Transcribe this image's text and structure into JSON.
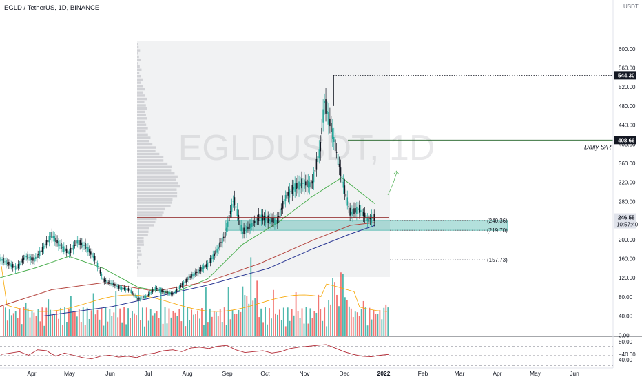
{
  "header": {
    "symbol_line": "EGLD / TetherUS, 1D, BINANCE",
    "unit": "USDT"
  },
  "watermark": "EGLDUSDT, 1D",
  "colors": {
    "up": "#26a69a",
    "down": "#131722",
    "vol_up": "#26a69a",
    "vol_down": "#ef5350",
    "zone": "#26a69a",
    "rsi": "#b22833",
    "ma_short": "#4caf50",
    "ma_mid": "#b5453f",
    "ma_long": "#283593"
  },
  "chart_data": [
    {
      "type": "line",
      "title": "EGLD / TetherUS, 1D, BINANCE",
      "x_ticks": [
        "Apr",
        "May",
        "Jun",
        "Jul",
        "Aug",
        "Sep",
        "Oct",
        "Nov",
        "Dec",
        "2022",
        "Feb",
        "Mar",
        "Apr",
        "May",
        "Jun"
      ],
      "y_ticks": [
        600,
        560,
        520,
        480,
        440,
        400,
        360,
        320,
        280,
        240,
        200,
        160,
        120,
        80,
        40,
        0,
        -40
      ],
      "y_tick_labels": [
        "600.00",
        "560.00",
        "520.00",
        "480.00",
        "440.00",
        "400.00",
        "360.00",
        "320.00",
        "280.00",
        "240.00",
        "200.00",
        "160.00",
        "120.00",
        "80.00",
        "40.00",
        "0.00",
        "−40.00"
      ],
      "ylim": [
        -60,
        610
      ],
      "price_labels": [
        {
          "value": 544.3,
          "text": "544.30"
        },
        {
          "value": 408.66,
          "text": "408.66"
        },
        {
          "value": 246.55,
          "text": "246.55",
          "sub": "10:57:40"
        }
      ],
      "annotations": {
        "daily_sr": "Daily S/R",
        "levels": [
          "(240.36)",
          "(219.70)",
          "(157.73)"
        ]
      },
      "series": [
        {
          "values": [
            {
              "x": "Mar 06",
              "y": 161
            },
            {
              "x": "Mar 13",
              "y": 150
            },
            {
              "x": "Mar 20",
              "y": 140
            },
            {
              "x": "Mar 27",
              "y": 165
            },
            {
              "x": "Apr 03",
              "y": 158
            },
            {
              "x": "Apr 10",
              "y": 180
            },
            {
              "x": "Apr 17",
              "y": 210
            },
            {
              "x": "Apr 24",
              "y": 188
            },
            {
              "x": "May 01",
              "y": 172
            },
            {
              "x": "May 08",
              "y": 196
            },
            {
              "x": "May 15",
              "y": 185
            },
            {
              "x": "May 22",
              "y": 160
            },
            {
              "x": "May 29",
              "y": 115
            },
            {
              "x": "Jun 05",
              "y": 108
            },
            {
              "x": "Jun 12",
              "y": 98
            },
            {
              "x": "Jun 19",
              "y": 95
            },
            {
              "x": "Jun 26",
              "y": 75
            },
            {
              "x": "Jul 03",
              "y": 82
            },
            {
              "x": "Jul 10",
              "y": 98
            },
            {
              "x": "Jul 17",
              "y": 90
            },
            {
              "x": "Jul 24",
              "y": 86
            },
            {
              "x": "Jul 31",
              "y": 105
            },
            {
              "x": "Aug 07",
              "y": 122
            },
            {
              "x": "Aug 14",
              "y": 135
            },
            {
              "x": "Aug 21",
              "y": 148
            },
            {
              "x": "Aug 28",
              "y": 175
            },
            {
              "x": "Sep 04",
              "y": 210
            },
            {
              "x": "Sep 11",
              "y": 285
            },
            {
              "x": "Sep 18",
              "y": 215
            },
            {
              "x": "Sep 25",
              "y": 230
            },
            {
              "x": "Oct 02",
              "y": 248
            },
            {
              "x": "Oct 09",
              "y": 242
            },
            {
              "x": "Oct 16",
              "y": 238
            },
            {
              "x": "Oct 23",
              "y": 290
            },
            {
              "x": "Oct 30",
              "y": 310
            },
            {
              "x": "Nov 06",
              "y": 318
            },
            {
              "x": "Nov 13",
              "y": 315
            },
            {
              "x": "Nov 20",
              "y": 395
            },
            {
              "x": "Nov 23",
              "y": 490
            },
            {
              "x": "Nov 30",
              "y": 420
            },
            {
              "x": "Dec 07",
              "y": 330
            },
            {
              "x": "Dec 14",
              "y": 255
            },
            {
              "x": "Dec 21",
              "y": 265
            },
            {
              "x": "Dec 28",
              "y": 242
            },
            {
              "x": "Jan 03",
              "y": 247
            }
          ]
        },
        {
          "values": [
            {
              "x": "Mar 06",
              "y": 120
            },
            {
              "x": "Apr 03",
              "y": 140
            },
            {
              "x": "May 01",
              "y": 165
            },
            {
              "x": "May 29",
              "y": 140
            },
            {
              "x": "Jun 26",
              "y": 100
            },
            {
              "x": "Jul 24",
              "y": 88
            },
            {
              "x": "Aug 21",
              "y": 118
            },
            {
              "x": "Sep 18",
              "y": 190
            },
            {
              "x": "Oct 16",
              "y": 235
            },
            {
              "x": "Nov 13",
              "y": 290
            },
            {
              "x": "Dec 07",
              "y": 330
            },
            {
              "x": "Jan 03",
              "y": 275
            }
          ]
        },
        {
          "values": [
            {
              "x": "Mar 06",
              "y": 60
            },
            {
              "x": "Apr 17",
              "y": 95
            },
            {
              "x": "May 29",
              "y": 110
            },
            {
              "x": "Jul 10",
              "y": 92
            },
            {
              "x": "Aug 21",
              "y": 112
            },
            {
              "x": "Oct 02",
              "y": 150
            },
            {
              "x": "Nov 13",
              "y": 198
            },
            {
              "x": "Dec 14",
              "y": 230
            },
            {
              "x": "Jan 03",
              "y": 236
            }
          ]
        },
        {
          "values": [
            {
              "x": "Apr 10",
              "y": 40
            },
            {
              "x": "Jun 05",
              "y": 60
            },
            {
              "x": "Jul 10",
              "y": 80
            },
            {
              "x": "Aug 21",
              "y": 105
            },
            {
              "x": "Oct 09",
              "y": 140
            },
            {
              "x": "Nov 13",
              "y": 180
            },
            {
              "x": "Dec 14",
              "y": 212
            },
            {
              "x": "Jan 03",
              "y": 230
            }
          ]
        }
      ]
    },
    {
      "type": "bar",
      "y_ticks": [
        80,
        40
      ],
      "y_tick_labels": [
        "80.00",
        "40.00"
      ],
      "ylim": [
        20,
        95
      ],
      "series": [
        {
          "values": [
            52,
            55,
            58,
            50,
            62,
            60,
            48,
            55,
            50,
            45,
            42,
            48,
            50,
            46,
            48,
            45,
            52,
            55,
            60,
            62,
            58,
            66,
            68,
            65,
            70,
            72,
            62,
            56,
            58,
            60,
            55,
            58,
            65,
            68,
            70,
            72,
            74,
            66,
            58,
            52,
            48,
            47,
            50,
            52
          ]
        }
      ]
    }
  ]
}
